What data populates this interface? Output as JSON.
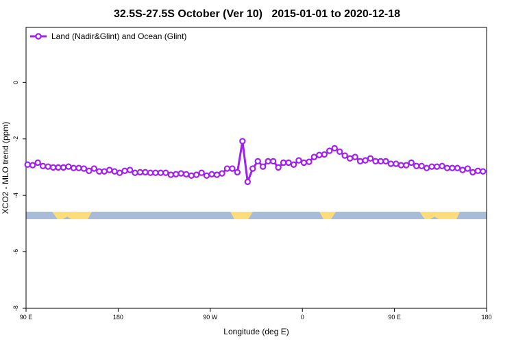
{
  "chart_data": {
    "type": "line",
    "title": "32.5S-27.5S October (Ver 10)   2015-01-01 to 2020-12-18",
    "xlabel": "Longitude (deg E)",
    "ylabel": "XCO2 - MLO trend (ppm)",
    "legend": "top-left",
    "xlim": [
      90,
      540
    ],
    "xticks": [
      {
        "value": 90,
        "label": "90 E"
      },
      180,
      {
        "value": 270,
        "label": "90 W"
      },
      {
        "value": 360,
        "label": "0"
      },
      {
        "value": 450,
        "label": "90 E"
      },
      {
        "value": 540,
        "label": "180"
      }
    ],
    "ylim": [
      -8,
      1.95
    ],
    "yticks": [
      0,
      -2,
      -4,
      -6,
      -8
    ],
    "x": [
      91.5,
      96.5,
      101.5,
      106.5,
      111.5,
      116.5,
      121.5,
      126.5,
      131.5,
      136.5,
      141.5,
      146.5,
      151.5,
      156.5,
      161.5,
      166.5,
      171.5,
      176.5,
      181.5,
      186.5,
      191.5,
      196.5,
      201.5,
      206.5,
      211.5,
      216.5,
      221.5,
      226.5,
      231.5,
      236.5,
      241.5,
      246.5,
      251.5,
      256.5,
      261.5,
      266.5,
      271.5,
      276.5,
      281.5,
      286.5,
      291.5,
      296.5,
      301.5,
      306.5,
      311.5,
      316.5,
      321.5,
      326.5,
      331.5,
      336.5,
      341.5,
      346.5,
      351.5,
      356.5,
      361.5,
      366.5,
      371.5,
      376.5,
      381.5,
      386.5,
      391.5,
      396.5,
      401.5,
      406.5,
      411.5,
      416.5,
      421.5,
      426.5,
      431.5,
      436.5,
      441.5,
      446.5,
      451.5,
      456.5,
      461.5,
      466.5,
      471.5,
      476.5,
      481.5,
      486.5,
      491.5,
      496.5,
      501.5,
      506.5,
      511.5,
      516.5,
      521.5,
      526.5,
      531.5,
      536.5
    ],
    "series": [
      {
        "name": "Land (Nadir&Glint) and Ocean (Glint)",
        "color": "#a020f0",
        "values": [
          -2.91,
          -2.93,
          -2.84,
          -2.96,
          -2.98,
          -3.01,
          -3.01,
          -3.01,
          -2.98,
          -3.03,
          -3.03,
          -3.05,
          -3.13,
          -3.05,
          -3.15,
          -3.15,
          -3.1,
          -3.15,
          -3.2,
          -3.13,
          -3.1,
          -3.2,
          -3.18,
          -3.18,
          -3.2,
          -3.2,
          -3.2,
          -3.2,
          -3.27,
          -3.25,
          -3.22,
          -3.25,
          -3.3,
          -3.27,
          -3.2,
          -3.3,
          -3.25,
          -3.27,
          -3.22,
          -3.05,
          -3.05,
          -3.18,
          -2.08,
          -3.52,
          -3.05,
          -2.79,
          -2.98,
          -2.79,
          -2.79,
          -3.01,
          -2.84,
          -2.84,
          -2.91,
          -2.76,
          -2.84,
          -2.81,
          -2.64,
          -2.57,
          -2.55,
          -2.42,
          -2.33,
          -2.45,
          -2.59,
          -2.69,
          -2.64,
          -2.79,
          -2.76,
          -2.69,
          -2.79,
          -2.79,
          -2.79,
          -2.88,
          -2.88,
          -2.93,
          -2.93,
          -2.84,
          -2.96,
          -2.96,
          -3.03,
          -2.98,
          -2.98,
          -2.96,
          -3.03,
          -3.03,
          -3.03,
          -3.1,
          -3.05,
          -3.18,
          -3.13,
          -3.15
        ]
      }
    ]
  }
}
